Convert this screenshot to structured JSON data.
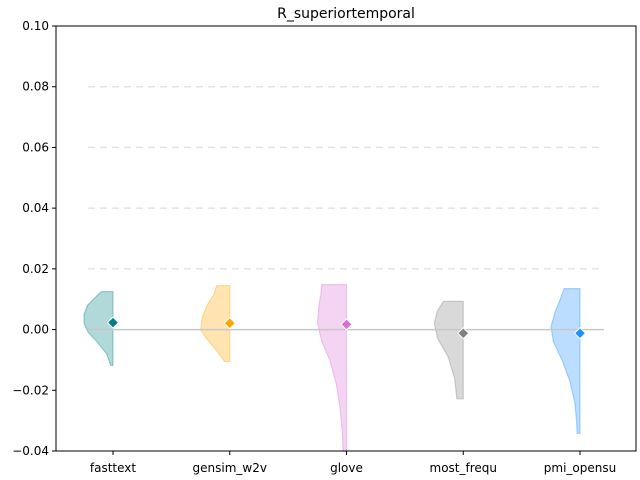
{
  "chart_data": {
    "type": "violin",
    "title": "R_superiortemporal",
    "xlabel": "",
    "ylabel": "",
    "ylim": [
      -0.04,
      0.1
    ],
    "yticks": [
      -0.04,
      -0.02,
      0.0,
      0.02,
      0.04,
      0.06,
      0.08,
      0.1
    ],
    "ytick_labels": [
      "−0.04",
      "−0.02",
      "0.00",
      "0.02",
      "0.04",
      "0.06",
      "0.08",
      "0.10"
    ],
    "grid": "horizontal dashed",
    "zero_line": 0,
    "categories": [
      "fasttext",
      "gensim_w2v",
      "glove",
      "most_frequ",
      "pmi_opensu"
    ],
    "series": [
      {
        "category": "fasttext",
        "color": "#008080",
        "mean": 0.0023,
        "min": -0.0118,
        "max": 0.0125,
        "density": [
          [
            -0.0118,
            0.08
          ],
          [
            -0.008,
            0.22
          ],
          [
            -0.004,
            0.55
          ],
          [
            -0.001,
            0.85
          ],
          [
            0.002,
            1.0
          ],
          [
            0.005,
            1.0
          ],
          [
            0.008,
            0.88
          ],
          [
            0.0105,
            0.62
          ],
          [
            0.0125,
            0.4
          ]
        ]
      },
      {
        "category": "gensim_w2v",
        "color": "#FFA500",
        "mean": 0.0021,
        "min": -0.0105,
        "max": 0.0145,
        "density": [
          [
            -0.0105,
            0.18
          ],
          [
            -0.007,
            0.45
          ],
          [
            -0.003,
            0.8
          ],
          [
            0.0,
            1.0
          ],
          [
            0.004,
            0.95
          ],
          [
            0.008,
            0.78
          ],
          [
            0.0115,
            0.55
          ],
          [
            0.0145,
            0.45
          ]
        ]
      },
      {
        "category": "glove",
        "color": "#DA70D6",
        "mean": 0.0017,
        "min": -0.04,
        "max": 0.0148,
        "density": [
          [
            -0.04,
            0.12
          ],
          [
            -0.034,
            0.14
          ],
          [
            -0.026,
            0.22
          ],
          [
            -0.018,
            0.35
          ],
          [
            -0.01,
            0.58
          ],
          [
            -0.004,
            0.85
          ],
          [
            0.002,
            1.0
          ],
          [
            0.008,
            0.95
          ],
          [
            0.012,
            0.88
          ],
          [
            0.0148,
            0.85
          ]
        ]
      },
      {
        "category": "most_frequ",
        "color": "#808080",
        "mean": -0.0012,
        "min": -0.0228,
        "max": 0.0093,
        "density": [
          [
            -0.0228,
            0.22
          ],
          [
            -0.016,
            0.3
          ],
          [
            -0.009,
            0.52
          ],
          [
            -0.003,
            0.88
          ],
          [
            0.002,
            1.0
          ],
          [
            0.006,
            0.9
          ],
          [
            0.0093,
            0.68
          ]
        ]
      },
      {
        "category": "pmi_opensu",
        "color": "#1E90FF",
        "mean": -0.0012,
        "min": -0.0342,
        "max": 0.0135,
        "density": [
          [
            -0.0342,
            0.1
          ],
          [
            -0.03,
            0.12
          ],
          [
            -0.024,
            0.18
          ],
          [
            -0.017,
            0.35
          ],
          [
            -0.01,
            0.62
          ],
          [
            -0.004,
            0.92
          ],
          [
            0.001,
            1.0
          ],
          [
            0.006,
            0.85
          ],
          [
            0.01,
            0.68
          ],
          [
            0.0135,
            0.55
          ]
        ]
      }
    ]
  }
}
